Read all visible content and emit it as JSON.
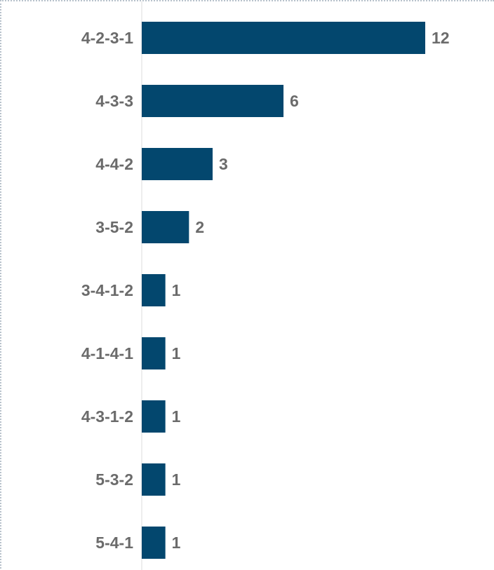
{
  "chart_data": {
    "type": "bar",
    "orientation": "horizontal",
    "categories": [
      "4-2-3-1",
      "4-3-3",
      "4-4-2",
      "3-5-2",
      "3-4-1-2",
      "4-1-4-1",
      "4-3-1-2",
      "5-3-2",
      "5-4-1"
    ],
    "values": [
      12,
      6,
      3,
      2,
      1,
      1,
      1,
      1,
      1
    ],
    "title": "",
    "xlabel": "",
    "ylabel": "",
    "xlim": [
      0,
      12
    ],
    "grid": false,
    "data_labels": true,
    "bar_color": "#03476e",
    "label_color": "#6b6b6b"
  }
}
